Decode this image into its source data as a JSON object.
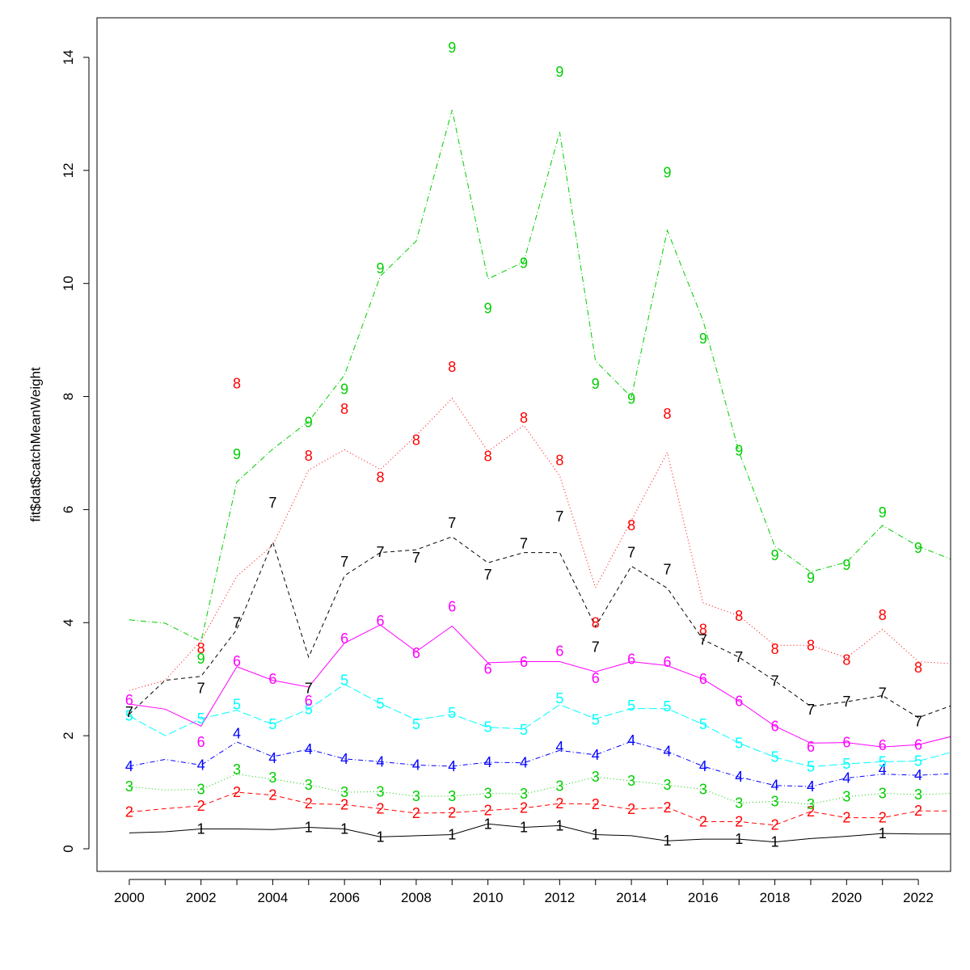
{
  "chart_data": {
    "type": "line",
    "title": "",
    "xlabel": "",
    "ylabel": "fit$dat$catchMeanWeight",
    "xlim": [
      1999.1,
      2022.9
    ],
    "ylim": [
      -0.4,
      14.7
    ],
    "x_ticks": [
      2000,
      2002,
      2004,
      2006,
      2008,
      2010,
      2012,
      2014,
      2016,
      2018,
      2020,
      2022
    ],
    "y_ticks": [
      0,
      2,
      4,
      6,
      8,
      10,
      12,
      14
    ],
    "grid": false,
    "legend": "none",
    "years": [
      2000,
      2001,
      2002,
      2003,
      2004,
      2005,
      2006,
      2007,
      2008,
      2009,
      2010,
      2011,
      2012,
      2013,
      2014,
      2015,
      2016,
      2017,
      2018,
      2019,
      2020,
      2021,
      2022,
      2023
    ],
    "series": [
      {
        "label": "1",
        "color": "#000000",
        "dash": "",
        "line": [
          0.28,
          0.3,
          0.35,
          0.35,
          0.34,
          0.38,
          0.35,
          0.21,
          0.23,
          0.25,
          0.44,
          0.38,
          0.41,
          0.25,
          0.23,
          0.14,
          0.17,
          0.17,
          0.12,
          0.18,
          0.22,
          0.27,
          0.26,
          0.26
        ],
        "points": [
          null,
          null,
          0.35,
          null,
          null,
          0.38,
          0.35,
          0.21,
          null,
          0.25,
          0.44,
          0.38,
          0.41,
          0.25,
          null,
          0.14,
          null,
          0.17,
          0.12,
          null,
          null,
          0.27,
          null,
          null
        ]
      },
      {
        "label": "2",
        "color": "#ff0000",
        "dash": "6,4",
        "line": [
          0.65,
          0.71,
          0.76,
          1.0,
          0.95,
          0.8,
          0.78,
          0.71,
          0.63,
          0.64,
          0.68,
          0.72,
          0.8,
          0.79,
          0.7,
          0.73,
          0.48,
          0.48,
          0.42,
          0.66,
          0.55,
          0.55,
          0.67,
          0.67
        ],
        "points": [
          0.65,
          null,
          0.76,
          1.0,
          0.95,
          0.8,
          0.78,
          0.71,
          0.63,
          0.64,
          0.68,
          0.72,
          0.8,
          0.79,
          0.7,
          0.73,
          0.48,
          0.48,
          0.42,
          0.66,
          0.55,
          0.55,
          0.67,
          null
        ]
      },
      {
        "label": "3",
        "color": "#00cd00",
        "dash": "1,3",
        "line": [
          1.1,
          1.04,
          1.05,
          1.32,
          1.23,
          1.13,
          1.0,
          1.01,
          0.93,
          0.93,
          0.98,
          0.97,
          1.11,
          1.27,
          1.2,
          1.13,
          1.05,
          0.81,
          0.84,
          0.79,
          0.92,
          0.98,
          0.96,
          0.98
        ],
        "points": [
          1.1,
          null,
          1.05,
          1.4,
          1.26,
          1.13,
          1.0,
          1.01,
          0.93,
          0.93,
          0.98,
          0.97,
          1.11,
          1.27,
          1.2,
          1.13,
          1.05,
          0.81,
          0.84,
          0.79,
          0.92,
          0.98,
          0.96,
          null
        ]
      },
      {
        "label": "4",
        "color": "#0000ff",
        "dash": "6,3,1,3",
        "line": [
          1.46,
          1.58,
          1.48,
          1.89,
          1.63,
          1.76,
          1.59,
          1.54,
          1.48,
          1.46,
          1.53,
          1.52,
          1.74,
          1.66,
          1.9,
          1.72,
          1.46,
          1.27,
          1.12,
          1.1,
          1.25,
          1.32,
          1.3,
          1.33
        ],
        "points": [
          1.46,
          null,
          1.48,
          2.04,
          1.6,
          1.76,
          1.59,
          1.54,
          1.48,
          1.46,
          1.53,
          1.52,
          1.8,
          1.66,
          1.92,
          1.72,
          1.46,
          1.27,
          1.12,
          1.1,
          1.25,
          1.4,
          1.3,
          null
        ]
      },
      {
        "label": "5",
        "color": "#00ffff",
        "dash": "10,4",
        "line": [
          2.35,
          2.0,
          2.3,
          2.45,
          2.2,
          2.47,
          2.91,
          2.57,
          2.28,
          2.38,
          2.15,
          2.12,
          2.55,
          2.3,
          2.48,
          2.48,
          2.2,
          1.87,
          1.62,
          1.45,
          1.5,
          1.54,
          1.55,
          1.72
        ],
        "points": [
          2.35,
          null,
          2.3,
          2.55,
          2.2,
          2.47,
          2.98,
          2.57,
          2.2,
          2.4,
          2.15,
          2.1,
          2.66,
          2.28,
          2.53,
          2.52,
          2.2,
          1.87,
          1.62,
          1.45,
          1.5,
          1.54,
          1.55,
          null
        ]
      },
      {
        "label": "6",
        "color": "#ff00ff",
        "dash": "",
        "line": [
          2.56,
          2.47,
          2.17,
          3.22,
          2.98,
          2.86,
          3.64,
          3.96,
          3.49,
          3.94,
          3.29,
          3.31,
          3.31,
          3.13,
          3.31,
          3.24,
          3.0,
          2.61,
          2.17,
          1.87,
          1.88,
          1.8,
          1.84,
          2.0
        ],
        "points": [
          2.63,
          null,
          1.89,
          3.32,
          3.0,
          2.62,
          3.72,
          4.03,
          3.46,
          4.28,
          3.18,
          3.3,
          3.5,
          3.02,
          3.35,
          3.3,
          3.0,
          2.61,
          2.17,
          1.8,
          1.88,
          1.83,
          1.84,
          null
        ]
      },
      {
        "label": "7",
        "color": "#000000",
        "dash": "5,4",
        "line": [
          2.38,
          2.98,
          3.05,
          3.88,
          5.43,
          3.39,
          4.83,
          5.24,
          5.29,
          5.52,
          5.06,
          5.24,
          5.24,
          3.93,
          5.0,
          4.61,
          3.7,
          3.39,
          2.97,
          2.52,
          2.6,
          2.71,
          2.32,
          2.55
        ],
        "points": [
          2.42,
          null,
          2.84,
          4.0,
          6.12,
          2.84,
          5.08,
          5.25,
          5.15,
          5.76,
          4.85,
          5.4,
          5.88,
          3.57,
          5.24,
          4.94,
          3.7,
          3.39,
          2.97,
          2.46,
          2.6,
          2.75,
          2.25,
          null
        ]
      },
      {
        "label": "8",
        "color": "#ff0000",
        "dash": "1,3",
        "line": [
          2.8,
          2.98,
          3.68,
          4.82,
          5.37,
          6.7,
          7.06,
          6.71,
          7.31,
          7.97,
          7.03,
          7.49,
          6.6,
          4.62,
          5.81,
          7.01,
          4.35,
          4.12,
          3.6,
          3.6,
          3.38,
          3.88,
          3.31,
          3.27
        ],
        "points": [
          null,
          null,
          3.55,
          8.23,
          null,
          6.95,
          7.78,
          6.57,
          7.23,
          8.52,
          6.94,
          7.62,
          6.87,
          4.0,
          5.72,
          7.69,
          3.88,
          4.12,
          3.53,
          3.6,
          3.34,
          4.13,
          3.2,
          null
        ]
      },
      {
        "label": "9",
        "color": "#00cd00",
        "dash": "7,3,1,3",
        "line": [
          4.05,
          3.99,
          3.67,
          6.49,
          7.07,
          7.56,
          8.38,
          10.13,
          10.75,
          13.07,
          10.08,
          10.38,
          12.68,
          8.63,
          7.99,
          10.94,
          9.34,
          7.02,
          5.35,
          4.9,
          5.07,
          5.72,
          5.35,
          5.1
        ],
        "points": [
          null,
          null,
          3.36,
          6.98,
          null,
          7.54,
          8.13,
          10.27,
          null,
          14.17,
          9.56,
          10.36,
          13.74,
          8.22,
          7.96,
          11.96,
          9.02,
          7.04,
          5.19,
          4.79,
          5.02,
          5.95,
          5.32,
          null
        ]
      }
    ]
  }
}
